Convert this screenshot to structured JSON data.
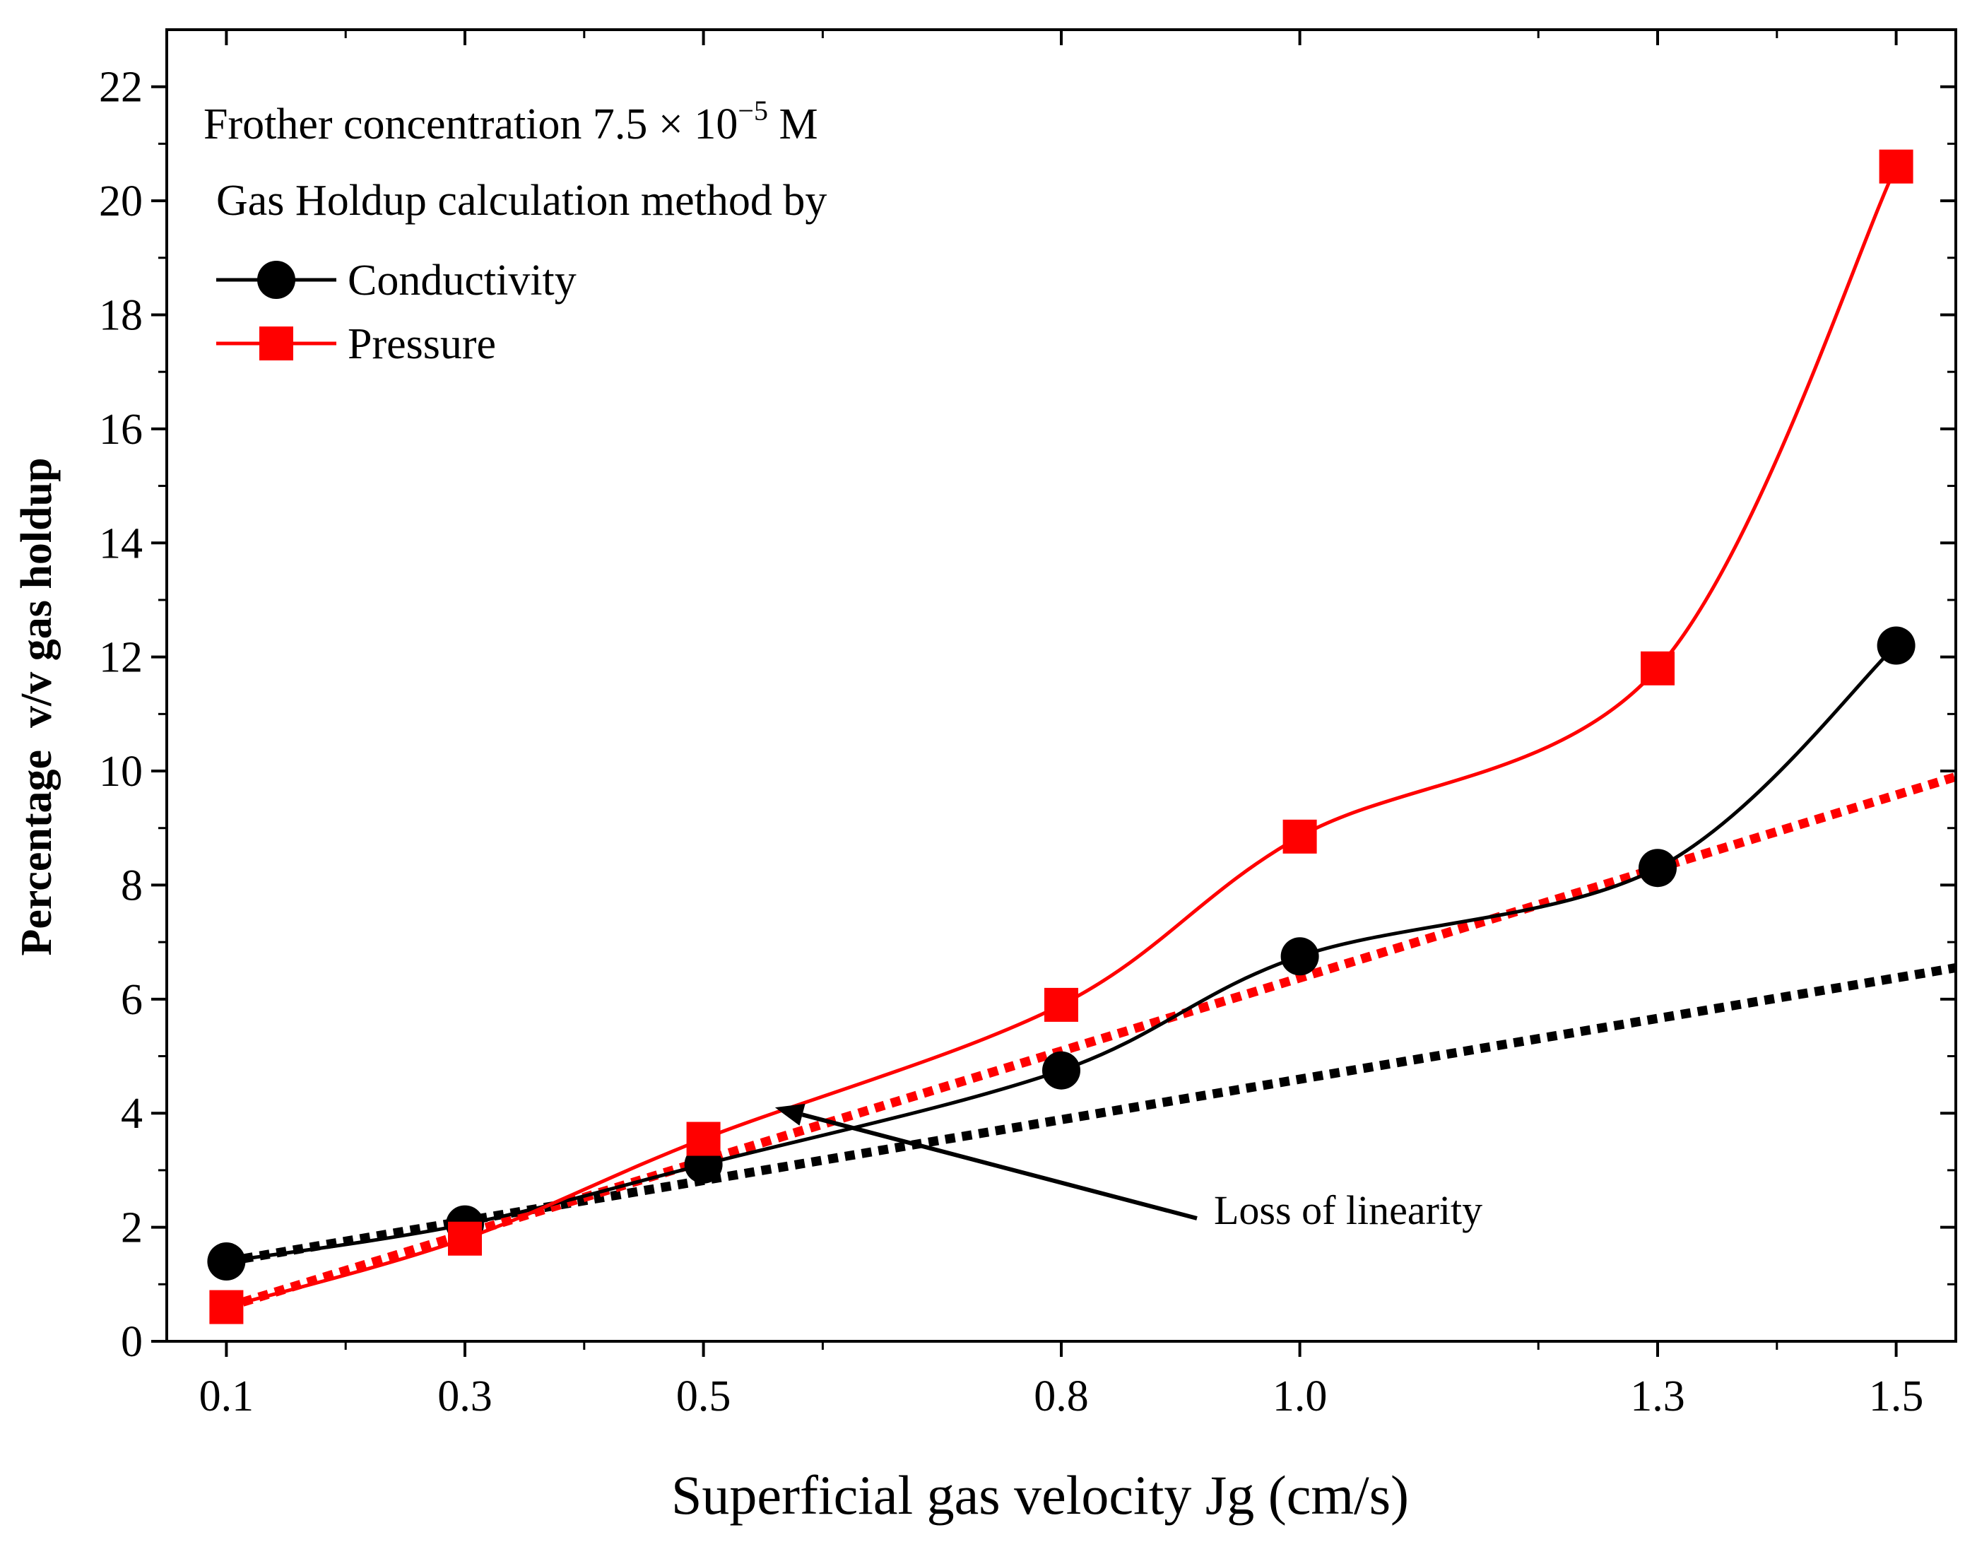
{
  "chart_data": {
    "type": "line",
    "x_categories": [
      "0.1",
      "0.3",
      "0.5",
      "0.8",
      "1.0",
      "1.3",
      "1.5"
    ],
    "xlabel": "Superficial gas velocity Jg (cm/s)",
    "ylabel": "Percentage  v/v gas holdup",
    "ylim": [
      0,
      23
    ],
    "yticks": [
      0,
      2,
      4,
      6,
      8,
      10,
      12,
      14,
      16,
      18,
      20,
      22
    ],
    "legend_header": {
      "line1_prefix": "Frother concentration 7.5 × 10",
      "line1_exponent": "−5",
      "line1_suffix": " M",
      "line2": "Gas Holdup calculation method by"
    },
    "series": [
      {
        "name": "Conductivity",
        "color": "#000000",
        "marker": "circle",
        "values": [
          1.4,
          2.05,
          3.1,
          4.75,
          6.75,
          8.3,
          12.2
        ],
        "trend": {
          "x_start": 0.1,
          "y_start": 1.4,
          "x_end": 1.55,
          "y_end": 6.55
        }
      },
      {
        "name": "Pressure",
        "color": "#ff0000",
        "marker": "square",
        "values": [
          0.6,
          1.8,
          3.55,
          5.9,
          8.85,
          11.8,
          20.6
        ],
        "trend": {
          "x_start": 0.1,
          "y_start": 0.6,
          "x_end": 1.55,
          "y_end": 9.9
        }
      }
    ],
    "annotations": [
      {
        "text": "Loss of linearity",
        "arrow_to_x": 0.56,
        "arrow_to_y": 4.1
      }
    ]
  }
}
